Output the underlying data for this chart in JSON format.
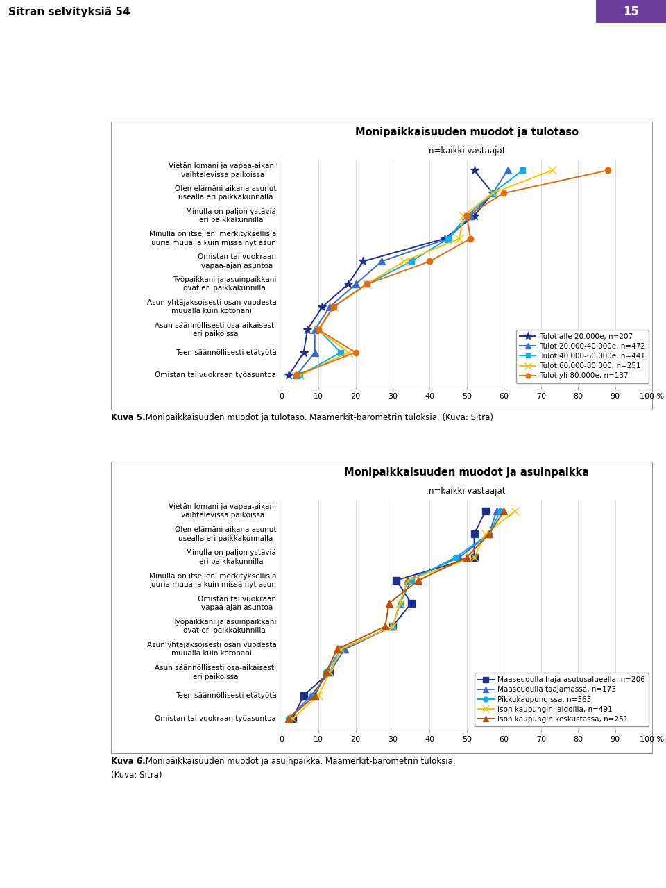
{
  "chart1": {
    "title": "Monipaikkaisuuden muodot ja tulotaso",
    "subtitle": "n=kaikki vastaajat",
    "categories": [
      "Vietän lomani ja vapaa-aikani\nvaihtelevissa paikoissa",
      "Olen elämäni aikana asunut\nusealla eri paikkakunnalla",
      "Minulla on paljon ystäviä\neri paikkakunnilla",
      "Minulla on itselleni merkityksellisiä\njuuria muualla kuin missä nyt asun",
      "Omistan tai vuokraan\nvapaa-ajan asuntoa",
      "Työpaikkani ja asuinpaikkani\novat eri paikkakunnilla",
      "Asun yhtäjaksoisesti osan vuodesta\nmuualla kuin kotonani",
      "Asun säännöllisesti osa-aikaisesti\neri paikoissa",
      "Teen säännöllisesti etätyötä",
      "Omistan tai vuokraan työasuntoa"
    ],
    "series": [
      {
        "label": "Tulot alle 20.000e, n=207",
        "color": "#1c2f8c",
        "marker": "*",
        "markersize": 9,
        "values": [
          52,
          57,
          52,
          44,
          22,
          18,
          11,
          7,
          6,
          2
        ]
      },
      {
        "label": "Tulot 20.000-40.000e, n=472",
        "color": "#3b6bcc",
        "marker": "^",
        "markersize": 7,
        "values": [
          61,
          57,
          51,
          45,
          27,
          20,
          13,
          9,
          9,
          4
        ]
      },
      {
        "label": "Tulot 40.000-60.000e, n=441",
        "color": "#00b0f0",
        "marker": "s",
        "markersize": 6,
        "values": [
          65,
          57,
          50,
          45,
          35,
          23,
          14,
          10,
          16,
          5
        ]
      },
      {
        "label": "Tulot 60.000-80.000, n=251",
        "color": "#ffc000",
        "marker": "x",
        "markersize": 8,
        "values": [
          73,
          57,
          49,
          48,
          33,
          23,
          14,
          10,
          18,
          5
        ]
      },
      {
        "label": "Tulot yli 80.000e, n=137",
        "color": "#e36c09",
        "marker": "o",
        "markersize": 6,
        "values": [
          88,
          60,
          50,
          51,
          40,
          23,
          14,
          10,
          20,
          4
        ]
      }
    ],
    "xlim": [
      0,
      100
    ],
    "xticks": [
      0,
      10,
      20,
      30,
      40,
      50,
      60,
      70,
      80,
      90,
      100
    ],
    "xticklabels": [
      "0",
      "10",
      "20",
      "30",
      "40",
      "50",
      "60",
      "70",
      "80",
      "90",
      "100 %"
    ]
  },
  "chart2": {
    "title": "Monipaikkaisuuden muodot ja asuinpaikka",
    "subtitle": "n=kaikki vastaajat",
    "categories": [
      "Vietän lomani ja vapaa-aikani\nvaihtelevissa paikoissa",
      "Olen elämäni aikana asunut\nusealla eri paikkakunnalla",
      "Minulla on paljon ystäviä\neri paikkakunnilla",
      "Minulla on itselleni merkityksellisiä\njuuria muualla kuin missä nyt asun",
      "Omistan tai vuokraan\nvapaa-ajan asuntoa",
      "Työpaikkani ja asuinpaikkani\novat eri paikkakunnilla",
      "Asun yhtäjaksoisesti osan vuodesta\nmuualla kuin kotonani",
      "Asun säännöllisesti osa-aikaisesti\neri paikoissa",
      "Teen säännöllisesti etätyötä",
      "Omistan tai vuokraan työasuntoa"
    ],
    "series": [
      {
        "label": "Maaseudulla haja-asutusalueella, n=206",
        "color": "#1c2f8c",
        "marker": "s",
        "markersize": 7,
        "values": [
          55,
          52,
          52,
          31,
          35,
          30,
          16,
          13,
          6,
          3
        ]
      },
      {
        "label": "Maaseudulla taajamassa, n=173",
        "color": "#3b6bcc",
        "marker": "^",
        "markersize": 7,
        "values": [
          58,
          56,
          48,
          34,
          32,
          30,
          17,
          13,
          8,
          2
        ]
      },
      {
        "label": "Pikkukaupungissa, n=363",
        "color": "#00b0f0",
        "marker": "o",
        "markersize": 6,
        "values": [
          59,
          56,
          47,
          35,
          32,
          30,
          16,
          12,
          9,
          2
        ]
      },
      {
        "label": "Ison kaupungin laidoilla, n=491",
        "color": "#ffc000",
        "marker": "x",
        "markersize": 8,
        "values": [
          63,
          55,
          52,
          34,
          32,
          30,
          16,
          13,
          10,
          3
        ]
      },
      {
        "label": "Ison kaupungin keskustassa, n=251",
        "color": "#c05000",
        "marker": "^",
        "markersize": 7,
        "values": [
          60,
          56,
          50,
          37,
          29,
          28,
          15,
          12,
          9,
          2
        ]
      }
    ],
    "xlim": [
      0,
      100
    ],
    "xticks": [
      0,
      10,
      20,
      30,
      40,
      50,
      60,
      70,
      80,
      90,
      100
    ],
    "xticklabels": [
      "0",
      "10",
      "20",
      "30",
      "40",
      "50",
      "60",
      "70",
      "80",
      "90",
      "100 %"
    ]
  },
  "caption1_bold": "Kuva 5.",
  "caption1_normal": " Monipaikkaisuuden muodot ja tulotaso. Maamerkit-barometrin tuloksia. (Kuva: Sitra)",
  "caption2_bold": "Kuva 6.",
  "caption2_normal": " Monipaikkaisuuden muodot ja asuinpaikka. Maamerkit-barometrin tuloksia.",
  "caption2_line2": "(Kuva: Sitra)",
  "page_header": "Sitran selvityksiä 54",
  "page_number": "15",
  "purple_color": "#6b3fa0"
}
